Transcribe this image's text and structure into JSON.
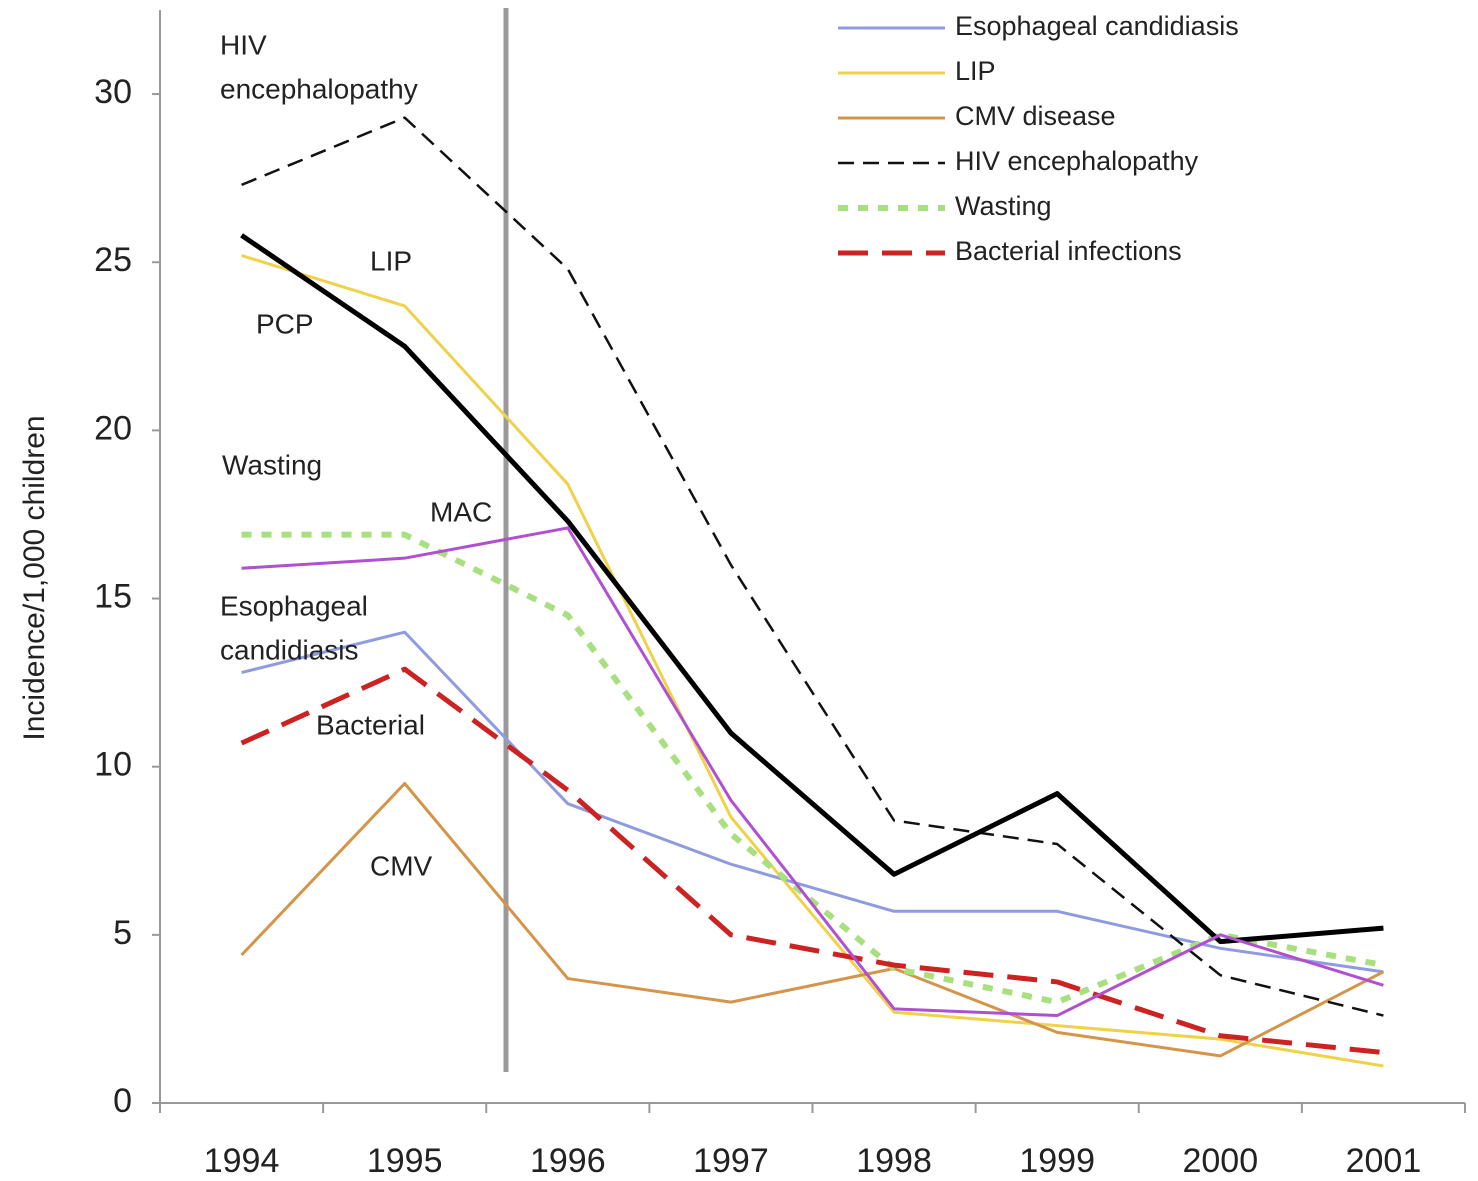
{
  "chart_data": {
    "type": "line",
    "ylabel": "Incidence/1,000 children",
    "categories": [
      "1994",
      "1995",
      "1996",
      "1997",
      "1998",
      "1999",
      "2000",
      "2001"
    ],
    "ylim": [
      0,
      32.5
    ],
    "yticks": [
      0,
      5,
      10,
      15,
      20,
      25,
      30
    ],
    "series": [
      {
        "name": "Esophageal candidiasis",
        "color": "#8f9be0",
        "style": "solid",
        "values": [
          12.8,
          14.0,
          8.9,
          7.1,
          5.7,
          5.7,
          4.6,
          3.9
        ]
      },
      {
        "name": "LIP",
        "color": "#efd24a",
        "style": "solid",
        "values": [
          25.2,
          23.7,
          18.4,
          8.5,
          2.7,
          2.3,
          1.9,
          1.1
        ]
      },
      {
        "name": "CMV disease",
        "color": "#d4954a",
        "style": "solid",
        "values": [
          4.4,
          9.5,
          3.7,
          3.0,
          4.0,
          2.1,
          1.4,
          3.9
        ]
      },
      {
        "name": "HIV encephalopathy",
        "color": "#111111",
        "style": "dashed",
        "values": [
          27.3,
          29.3,
          24.8,
          16.0,
          8.4,
          7.7,
          3.8,
          2.6
        ]
      },
      {
        "name": "Wasting",
        "color": "#a8e080",
        "style": "dotted",
        "values": [
          16.9,
          16.9,
          14.5,
          8.0,
          4.0,
          3.0,
          5.0,
          4.1
        ]
      },
      {
        "name": "Bacterial infections",
        "color": "#cc2222",
        "style": "longdash",
        "values": [
          10.7,
          12.9,
          9.3,
          5.0,
          4.1,
          3.6,
          2.0,
          1.5
        ]
      }
    ],
    "annotated_series": [
      {
        "name": "PCP",
        "color": "#000000",
        "style": "bold",
        "values": [
          25.8,
          22.5,
          17.3,
          11.0,
          6.8,
          9.2,
          4.8,
          5.2
        ]
      },
      {
        "name": "MAC",
        "color": "#b050d0",
        "style": "solid",
        "values": [
          15.9,
          16.2,
          17.1,
          9.0,
          2.8,
          2.6,
          5.0,
          3.5
        ]
      }
    ],
    "annotations": [
      [
        "HIV",
        "encephalopathy"
      ],
      [
        "LIP"
      ],
      [
        "Wasting"
      ],
      [
        "Esophageal",
        "candidiasis"
      ],
      [
        "Bacterial"
      ],
      [
        "CMV"
      ]
    ],
    "legend": "upper right"
  }
}
